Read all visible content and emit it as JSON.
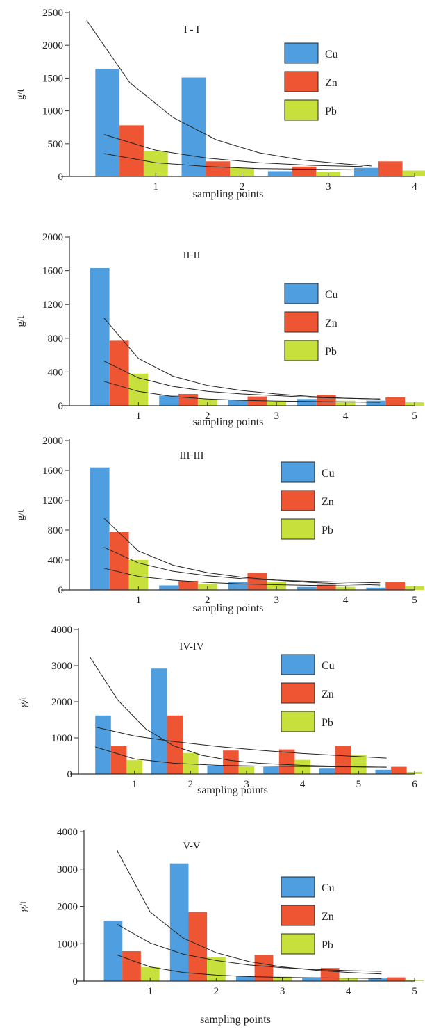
{
  "colors": {
    "Cu": "#4f9fe0",
    "Zn": "#ee5533",
    "Pb": "#c8e03c",
    "trend": "#222222",
    "axis": "#333333"
  },
  "chart_data": [
    {
      "type": "bar",
      "title": "I - I",
      "xlabel": "sampling points",
      "ylabel": "g/t",
      "xlim": [
        0,
        4
      ],
      "xticks": [
        "1",
        "2",
        "3",
        "4"
      ],
      "ylim": [
        0,
        2500
      ],
      "yticks": [
        "0",
        "500",
        "1000",
        "1500",
        "2000",
        "2500"
      ],
      "categories": [
        "1",
        "2",
        "3",
        "4"
      ],
      "series": [
        {
          "name": "Cu",
          "values": [
            1640,
            1510,
            80,
            130
          ]
        },
        {
          "name": "Zn",
          "values": [
            780,
            230,
            150,
            230
          ]
        },
        {
          "name": "Pb",
          "values": [
            390,
            130,
            70,
            90
          ]
        }
      ],
      "trend_lines": [
        {
          "points": [
            [
              0.2,
              2380
            ],
            [
              0.7,
              1430
            ],
            [
              1.2,
              900
            ],
            [
              1.7,
              560
            ],
            [
              2.2,
              360
            ],
            [
              2.7,
              250
            ],
            [
              3.2,
              190
            ],
            [
              3.5,
              160
            ]
          ]
        },
        {
          "points": [
            [
              0.4,
              640
            ],
            [
              1.0,
              400
            ],
            [
              1.6,
              280
            ],
            [
              2.2,
              210
            ],
            [
              2.8,
              170
            ],
            [
              3.4,
              150
            ]
          ]
        },
        {
          "points": [
            [
              0.4,
              350
            ],
            [
              1.0,
              210
            ],
            [
              1.6,
              150
            ],
            [
              2.2,
              120
            ],
            [
              2.8,
              110
            ],
            [
              3.4,
              100
            ]
          ]
        }
      ],
      "legend": [
        "Cu",
        "Zn",
        "Pb"
      ],
      "legend_position": "right"
    },
    {
      "type": "bar",
      "title": "II-II",
      "xlabel": "sampling points",
      "ylabel": "g/t",
      "xlim": [
        0,
        5
      ],
      "xticks": [
        "1",
        "2",
        "3",
        "4",
        "5"
      ],
      "ylim": [
        0,
        2000
      ],
      "yticks": [
        "0",
        "400",
        "800",
        "1200",
        "1600",
        "2000"
      ],
      "categories": [
        "1",
        "2",
        "3",
        "4",
        "5"
      ],
      "series": [
        {
          "name": "Cu",
          "values": [
            1630,
            120,
            70,
            80,
            60
          ]
        },
        {
          "name": "Zn",
          "values": [
            770,
            140,
            110,
            130,
            100
          ]
        },
        {
          "name": "Pb",
          "values": [
            380,
            80,
            50,
            60,
            40
          ]
        }
      ],
      "trend_lines": [
        {
          "points": [
            [
              0.5,
              1040
            ],
            [
              1.0,
              560
            ],
            [
              1.5,
              350
            ],
            [
              2.0,
              240
            ],
            [
              2.5,
              180
            ],
            [
              3.0,
              140
            ],
            [
              3.5,
              110
            ],
            [
              4.0,
              90
            ],
            [
              4.5,
              80
            ]
          ]
        },
        {
          "points": [
            [
              0.5,
              530
            ],
            [
              1.0,
              330
            ],
            [
              1.5,
              230
            ],
            [
              2.0,
              170
            ],
            [
              2.5,
              140
            ],
            [
              3.0,
              120
            ],
            [
              3.5,
              100
            ],
            [
              4.0,
              90
            ],
            [
              4.5,
              80
            ]
          ]
        },
        {
          "points": [
            [
              0.5,
              290
            ],
            [
              1.0,
              170
            ],
            [
              1.5,
              110
            ],
            [
              2.0,
              80
            ],
            [
              2.5,
              65
            ],
            [
              3.0,
              55
            ],
            [
              3.5,
              50
            ],
            [
              4.0,
              45
            ],
            [
              4.5,
              40
            ]
          ]
        }
      ],
      "legend": [
        "Cu",
        "Zn",
        "Pb"
      ],
      "legend_position": "right"
    },
    {
      "type": "bar",
      "title": "III-III",
      "xlabel": "sampling points",
      "ylabel": "g/t",
      "xlim": [
        0,
        5
      ],
      "xticks": [
        "1",
        "2",
        "3",
        "4",
        "5"
      ],
      "ylim": [
        0,
        2000
      ],
      "yticks": [
        "0",
        "400",
        "800",
        "1200",
        "1600",
        "2000"
      ],
      "categories": [
        "1",
        "2",
        "3",
        "4",
        "5"
      ],
      "series": [
        {
          "name": "Cu",
          "values": [
            1640,
            60,
            110,
            40,
            30
          ]
        },
        {
          "name": "Zn",
          "values": [
            780,
            120,
            230,
            70,
            110
          ]
        },
        {
          "name": "Pb",
          "values": [
            400,
            80,
            110,
            40,
            50
          ]
        }
      ],
      "trend_lines": [
        {
          "points": [
            [
              0.5,
              960
            ],
            [
              1.0,
              520
            ],
            [
              1.5,
              330
            ],
            [
              2.0,
              230
            ],
            [
              2.5,
              170
            ],
            [
              3.0,
              130
            ],
            [
              3.5,
              100
            ],
            [
              4.0,
              80
            ],
            [
              4.5,
              65
            ]
          ]
        },
        {
          "points": [
            [
              0.5,
              570
            ],
            [
              1.0,
              360
            ],
            [
              1.5,
              250
            ],
            [
              2.0,
              190
            ],
            [
              2.5,
              150
            ],
            [
              3.0,
              130
            ],
            [
              3.5,
              115
            ],
            [
              4.0,
              105
            ],
            [
              4.5,
              95
            ]
          ]
        },
        {
          "points": [
            [
              0.5,
              290
            ],
            [
              1.0,
              180
            ],
            [
              1.5,
              130
            ],
            [
              2.0,
              100
            ],
            [
              2.5,
              80
            ],
            [
              3.0,
              70
            ],
            [
              3.5,
              60
            ],
            [
              4.0,
              55
            ],
            [
              4.5,
              50
            ]
          ]
        }
      ],
      "legend": [
        "Cu",
        "Zn",
        "Pb"
      ],
      "legend_position": "right"
    },
    {
      "type": "bar",
      "title": "IV-IV",
      "xlabel": "sampling points",
      "ylabel": "g/t",
      "xlim": [
        0,
        6
      ],
      "xticks": [
        "1",
        "2",
        "3",
        "4",
        "5",
        "6"
      ],
      "ylim": [
        0,
        4000
      ],
      "yticks": [
        "0",
        "1000",
        "2000",
        "3000",
        "4000"
      ],
      "categories": [
        "1",
        "2",
        "3",
        "4",
        "5",
        "6"
      ],
      "series": [
        {
          "name": "Cu",
          "values": [
            1620,
            2920,
            230,
            200,
            150,
            120
          ]
        },
        {
          "name": "Zn",
          "values": [
            770,
            1620,
            650,
            680,
            780,
            200
          ]
        },
        {
          "name": "Pb",
          "values": [
            380,
            580,
            210,
            390,
            530,
            60
          ]
        }
      ],
      "trend_lines": [
        {
          "points": [
            [
              0.2,
              3250
            ],
            [
              0.7,
              2050
            ],
            [
              1.2,
              1250
            ],
            [
              1.7,
              780
            ],
            [
              2.2,
              520
            ],
            [
              2.7,
              380
            ],
            [
              3.2,
              300
            ],
            [
              4.0,
              240
            ],
            [
              5.0,
              200
            ],
            [
              5.5,
              190
            ]
          ]
        },
        {
          "points": [
            [
              0.3,
              1300
            ],
            [
              1.0,
              1050
            ],
            [
              1.7,
              900
            ],
            [
              2.5,
              760
            ],
            [
              3.3,
              650
            ],
            [
              4.0,
              570
            ],
            [
              4.8,
              500
            ],
            [
              5.5,
              440
            ]
          ]
        },
        {
          "points": [
            [
              0.3,
              750
            ],
            [
              1.0,
              420
            ],
            [
              1.7,
              300
            ],
            [
              2.5,
              240
            ],
            [
              3.3,
              220
            ],
            [
              4.0,
              210
            ],
            [
              4.8,
              200
            ],
            [
              5.5,
              190
            ]
          ]
        }
      ],
      "legend": [
        "Cu",
        "Zn",
        "Pb"
      ],
      "legend_position": "right"
    },
    {
      "type": "bar",
      "title": "V-V",
      "xlabel": "sampling points",
      "ylabel": "g/t",
      "xlim": [
        0,
        5
      ],
      "xticks": [
        "1",
        "2",
        "3",
        "4",
        "5"
      ],
      "ylim": [
        0,
        4000
      ],
      "yticks": [
        "0",
        "1000",
        "2000",
        "3000",
        "4000"
      ],
      "categories": [
        "1",
        "2",
        "3",
        "4",
        "5"
      ],
      "series": [
        {
          "name": "Cu",
          "values": [
            1620,
            3150,
            130,
            100,
            70
          ]
        },
        {
          "name": "Zn",
          "values": [
            800,
            1850,
            700,
            350,
            100
          ]
        },
        {
          "name": "Pb",
          "values": [
            370,
            650,
            120,
            90,
            30
          ]
        }
      ],
      "trend_lines": [
        {
          "points": [
            [
              0.5,
              3500
            ],
            [
              1.0,
              1850
            ],
            [
              1.5,
              1150
            ],
            [
              2.0,
              760
            ],
            [
              2.5,
              520
            ],
            [
              3.0,
              380
            ],
            [
              3.5,
              290
            ],
            [
              4.0,
              230
            ],
            [
              4.5,
              190
            ]
          ]
        },
        {
          "points": [
            [
              0.5,
              1520
            ],
            [
              1.0,
              1020
            ],
            [
              1.5,
              720
            ],
            [
              2.0,
              550
            ],
            [
              2.5,
              430
            ],
            [
              3.0,
              360
            ],
            [
              3.5,
              310
            ],
            [
              4.0,
              280
            ],
            [
              4.5,
              260
            ]
          ]
        },
        {
          "points": [
            [
              0.5,
              700
            ],
            [
              1.0,
              380
            ],
            [
              1.5,
              230
            ],
            [
              2.0,
              160
            ],
            [
              2.5,
              120
            ],
            [
              3.0,
              100
            ],
            [
              3.5,
              90
            ],
            [
              4.0,
              80
            ],
            [
              4.5,
              70
            ]
          ]
        }
      ],
      "legend": [
        "Cu",
        "Zn",
        "Pb"
      ],
      "legend_position": "right"
    }
  ]
}
